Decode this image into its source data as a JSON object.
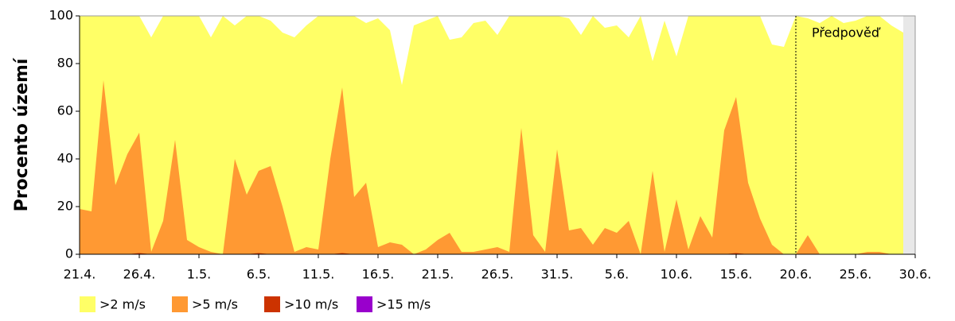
{
  "chart_data": {
    "type": "area",
    "ylabel": "Procento území",
    "categories": [
      "21.4.",
      null,
      null,
      null,
      null,
      "26.4.",
      null,
      null,
      null,
      null,
      "1.5.",
      null,
      null,
      null,
      null,
      "6.5.",
      null,
      null,
      null,
      null,
      "11.5.",
      null,
      null,
      null,
      null,
      "16.5.",
      null,
      null,
      null,
      null,
      "21.5.",
      null,
      null,
      null,
      null,
      "26.5.",
      null,
      null,
      null,
      null,
      "31.5.",
      null,
      null,
      null,
      null,
      "5.6.",
      null,
      null,
      null,
      null,
      "10.6.",
      null,
      null,
      null,
      null,
      "15.6.",
      null,
      null,
      null,
      null,
      "20.6.",
      null,
      null,
      null,
      null,
      "25.6.",
      null,
      null,
      null,
      null,
      "30.6."
    ],
    "series": [
      {
        "name": ">2 m/s",
        "color": "#ffff66",
        "values": [
          100,
          100,
          100,
          100,
          100,
          100,
          91,
          100,
          100,
          100,
          100,
          91,
          100,
          96,
          100,
          100,
          98,
          93,
          91,
          96,
          100,
          100,
          100,
          100,
          97,
          99,
          94,
          71,
          96,
          98,
          100,
          90,
          91,
          97,
          98,
          92,
          100,
          100,
          100,
          100,
          100,
          99,
          92,
          100,
          95,
          96,
          91,
          100,
          81,
          98,
          83,
          100,
          100,
          100,
          100,
          100,
          100,
          100,
          88,
          87,
          100,
          99,
          97,
          100,
          97,
          98,
          100,
          100,
          96,
          93,
          null
        ]
      },
      {
        "name": ">5 m/s",
        "color": "#ff9933",
        "values": [
          19,
          18,
          73,
          29,
          42,
          51,
          1,
          14,
          48,
          6,
          3,
          1,
          0,
          40,
          25,
          35,
          37,
          20,
          1,
          3,
          2,
          40,
          70,
          24,
          30,
          3,
          5,
          4,
          0,
          2,
          6,
          9,
          1,
          1,
          2,
          3,
          1,
          53,
          8,
          1,
          44,
          10,
          11,
          4,
          11,
          9,
          14,
          0,
          35,
          1,
          23,
          2,
          16,
          7,
          52,
          66,
          30,
          15,
          4,
          0,
          0,
          8,
          0,
          0,
          0,
          0,
          1,
          1,
          0,
          0,
          null
        ]
      },
      {
        "name": ">10 m/s",
        "color": "#cc3300",
        "values": [
          0,
          0,
          0,
          0,
          0,
          0.5,
          0,
          0,
          0,
          0,
          0,
          0,
          0,
          0,
          0,
          0.5,
          0,
          0,
          0,
          0,
          0,
          0,
          0.5,
          0,
          0,
          0,
          0,
          0,
          0,
          0,
          0,
          0,
          0,
          0,
          0,
          0,
          0,
          0,
          0,
          0,
          0,
          0,
          0,
          0,
          0,
          0,
          0,
          0,
          0,
          0,
          0,
          0,
          0,
          0,
          0,
          0.5,
          0,
          0,
          0,
          0,
          0,
          0,
          0,
          0,
          0,
          0,
          0,
          0,
          0,
          0,
          null
        ]
      },
      {
        "name": ">15 m/s",
        "color": "#9900cc",
        "values": [
          0,
          0,
          0,
          0,
          0,
          0,
          0,
          0,
          0,
          0,
          0,
          0,
          0,
          0,
          0,
          0,
          0,
          0,
          0,
          0,
          0,
          0,
          0,
          0,
          0,
          0,
          0,
          0,
          0,
          0,
          0,
          0,
          0,
          0,
          0,
          0,
          0,
          0,
          0,
          0,
          0,
          0,
          0,
          0,
          0,
          0,
          0,
          0,
          0,
          0,
          0,
          0,
          0,
          0,
          0,
          0,
          0,
          0,
          0,
          0,
          0,
          0,
          0,
          0,
          0,
          0,
          0,
          0,
          0,
          0,
          null
        ]
      }
    ],
    "ylim": [
      0,
      100
    ],
    "yticks": [
      0,
      20,
      40,
      60,
      80,
      100
    ],
    "forecast_label": "Předpověď",
    "forecast_start": "20.6."
  }
}
